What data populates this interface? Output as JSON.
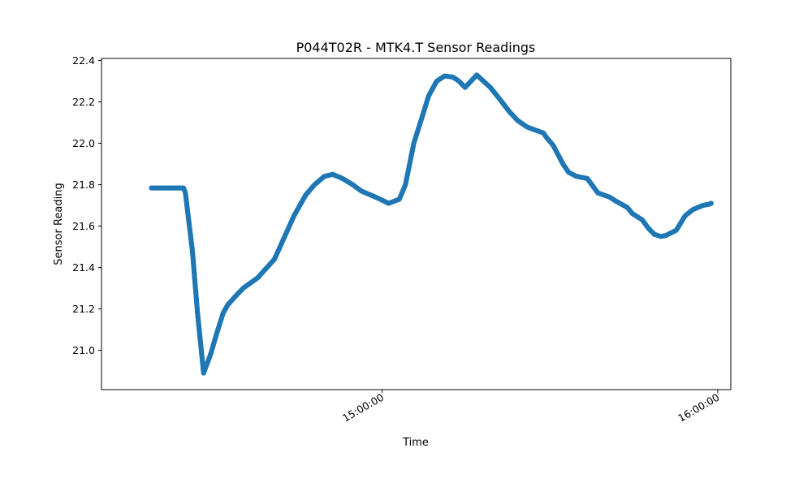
{
  "chart_data": {
    "type": "scatter",
    "title": "P044T02R - MTK4.T Sensor Readings",
    "xlabel": "Time",
    "ylabel": "Sensor Reading",
    "x_ticks": [
      "15:00:00",
      "16:00:00"
    ],
    "y_ticks": [
      "21.0",
      "21.2",
      "21.4",
      "21.6",
      "21.8",
      "22.0",
      "22.2",
      "22.4"
    ],
    "ylim": [
      20.81,
      22.41
    ],
    "xlim": [
      "14:09:50",
      "16:02:20"
    ],
    "grid": false,
    "legend": "none",
    "color": "#1f77b4",
    "series": [
      {
        "x": [
          "14:18:45",
          "14:24:30",
          "14:24:50",
          "14:26:05",
          "14:27:00",
          "14:28:05",
          "14:29:20",
          "14:30:25",
          "14:31:00",
          "14:31:35",
          "14:32:25",
          "14:33:45",
          "14:35:10",
          "14:37:45",
          "14:40:45",
          "14:44:15",
          "14:46:20",
          "14:47:55",
          "14:49:40",
          "14:51:10",
          "14:52:55",
          "14:54:45",
          "14:56:15",
          "14:58:50",
          "15:01:10",
          "15:03:05",
          "15:04:10",
          "15:05:40",
          "15:08:20",
          "15:09:45",
          "15:11:10",
          "15:12:40",
          "15:13:45",
          "15:14:50",
          "15:16:55",
          "15:19:20",
          "15:20:50",
          "15:22:50",
          "15:24:15",
          "15:25:50",
          "15:26:45",
          "15:28:50",
          "15:29:20",
          "15:30:35",
          "15:32:20",
          "15:33:20",
          "15:34:45",
          "15:36:40",
          "15:38:35",
          "15:40:40",
          "15:41:50",
          "15:43:50",
          "15:44:45",
          "15:46:30",
          "15:47:35",
          "15:48:40",
          "15:49:50",
          "15:50:45",
          "15:52:35",
          "15:54:10",
          "15:55:35",
          "15:57:20",
          "15:58:20",
          "15:58:50"
        ],
        "y": [
          21.784,
          21.784,
          21.76,
          21.48,
          21.18,
          20.89,
          20.98,
          21.08,
          21.13,
          21.18,
          21.22,
          21.26,
          21.3,
          21.35,
          21.44,
          21.65,
          21.75,
          21.8,
          21.84,
          21.85,
          21.83,
          21.8,
          21.77,
          21.74,
          21.71,
          21.73,
          21.8,
          22.0,
          22.23,
          22.3,
          22.325,
          22.32,
          22.3,
          22.27,
          22.33,
          22.27,
          22.22,
          22.15,
          22.11,
          22.08,
          22.07,
          22.05,
          22.03,
          21.99,
          21.9,
          21.86,
          21.84,
          21.83,
          21.76,
          21.74,
          21.72,
          21.69,
          21.66,
          21.63,
          21.59,
          21.56,
          21.55,
          21.555,
          21.58,
          21.65,
          21.68,
          21.7,
          21.705,
          21.71
        ]
      }
    ]
  }
}
